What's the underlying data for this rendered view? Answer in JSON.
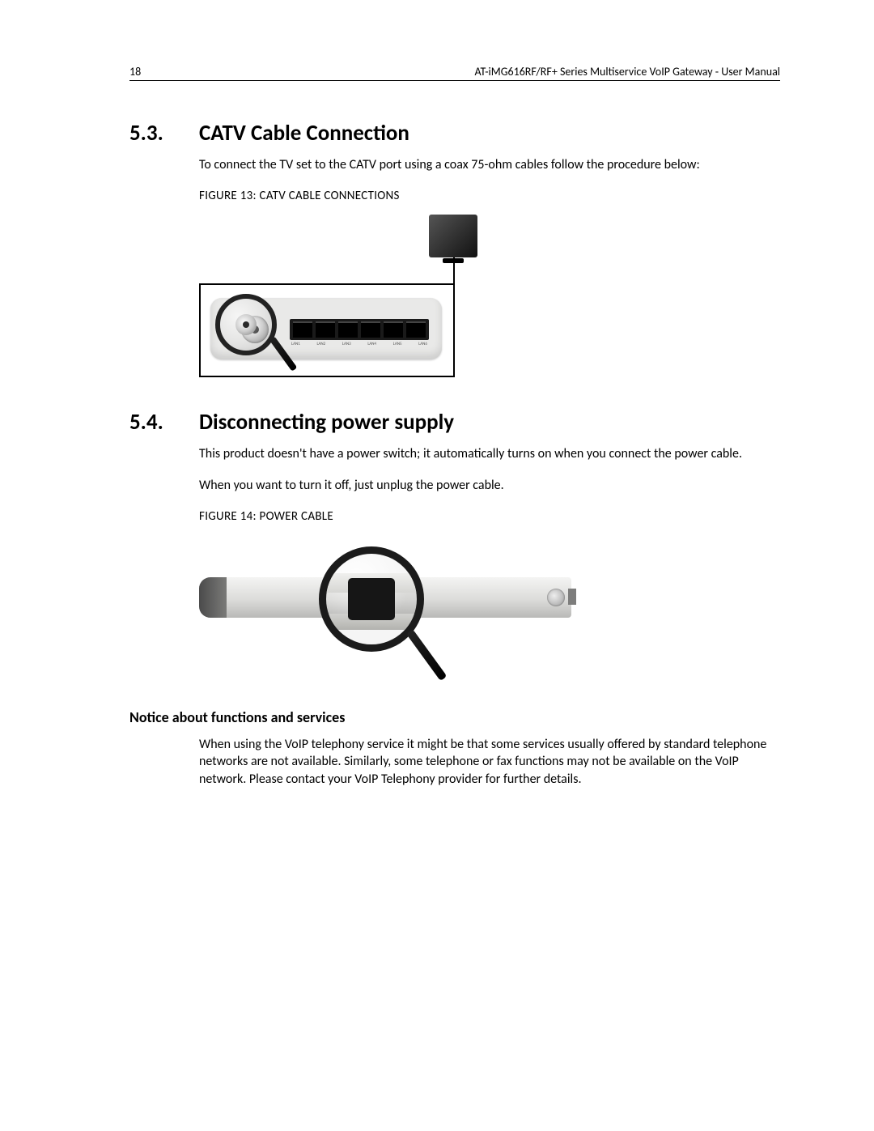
{
  "header": {
    "page_number": "18",
    "doc_title": "AT-iMG616RF/RF+ Series Multiservice VoIP Gateway - User Manual"
  },
  "s53": {
    "num": "5.3.",
    "title": "CATV Cable Connection",
    "intro": "To connect the TV set to the CATV port using a coax 75-ohm cables follow the procedure below:",
    "fig_caption": "FIGURE 13: CATV CABLE CONNECTIONS",
    "port_labels": [
      "LAN1",
      "LAN2",
      "LAN3",
      "LAN4",
      "LAN5",
      "LAN6"
    ]
  },
  "s54": {
    "num": "5.4.",
    "title": "Disconnecting power supply",
    "p1": "This product doesn't have a power switch; it automatically turns on when you connect the power cable.",
    "p2": "When you want to turn it off, just unplug the power cable.",
    "fig_caption": "FIGURE 14: POWER CABLE"
  },
  "notice": {
    "title": "Notice about functions and services",
    "body": "When using the VoIP telephony service it might be that some services usually offered by standard telephone networks are not available. Similarly, some telephone or fax functions may not be available on the VoIP network. Please contact your VoIP Telephony provider for further details."
  },
  "colors": {
    "text": "#000000",
    "background": "#ffffff",
    "device_body": "#e9e9e8",
    "lens_border": "#1b1b1b"
  }
}
